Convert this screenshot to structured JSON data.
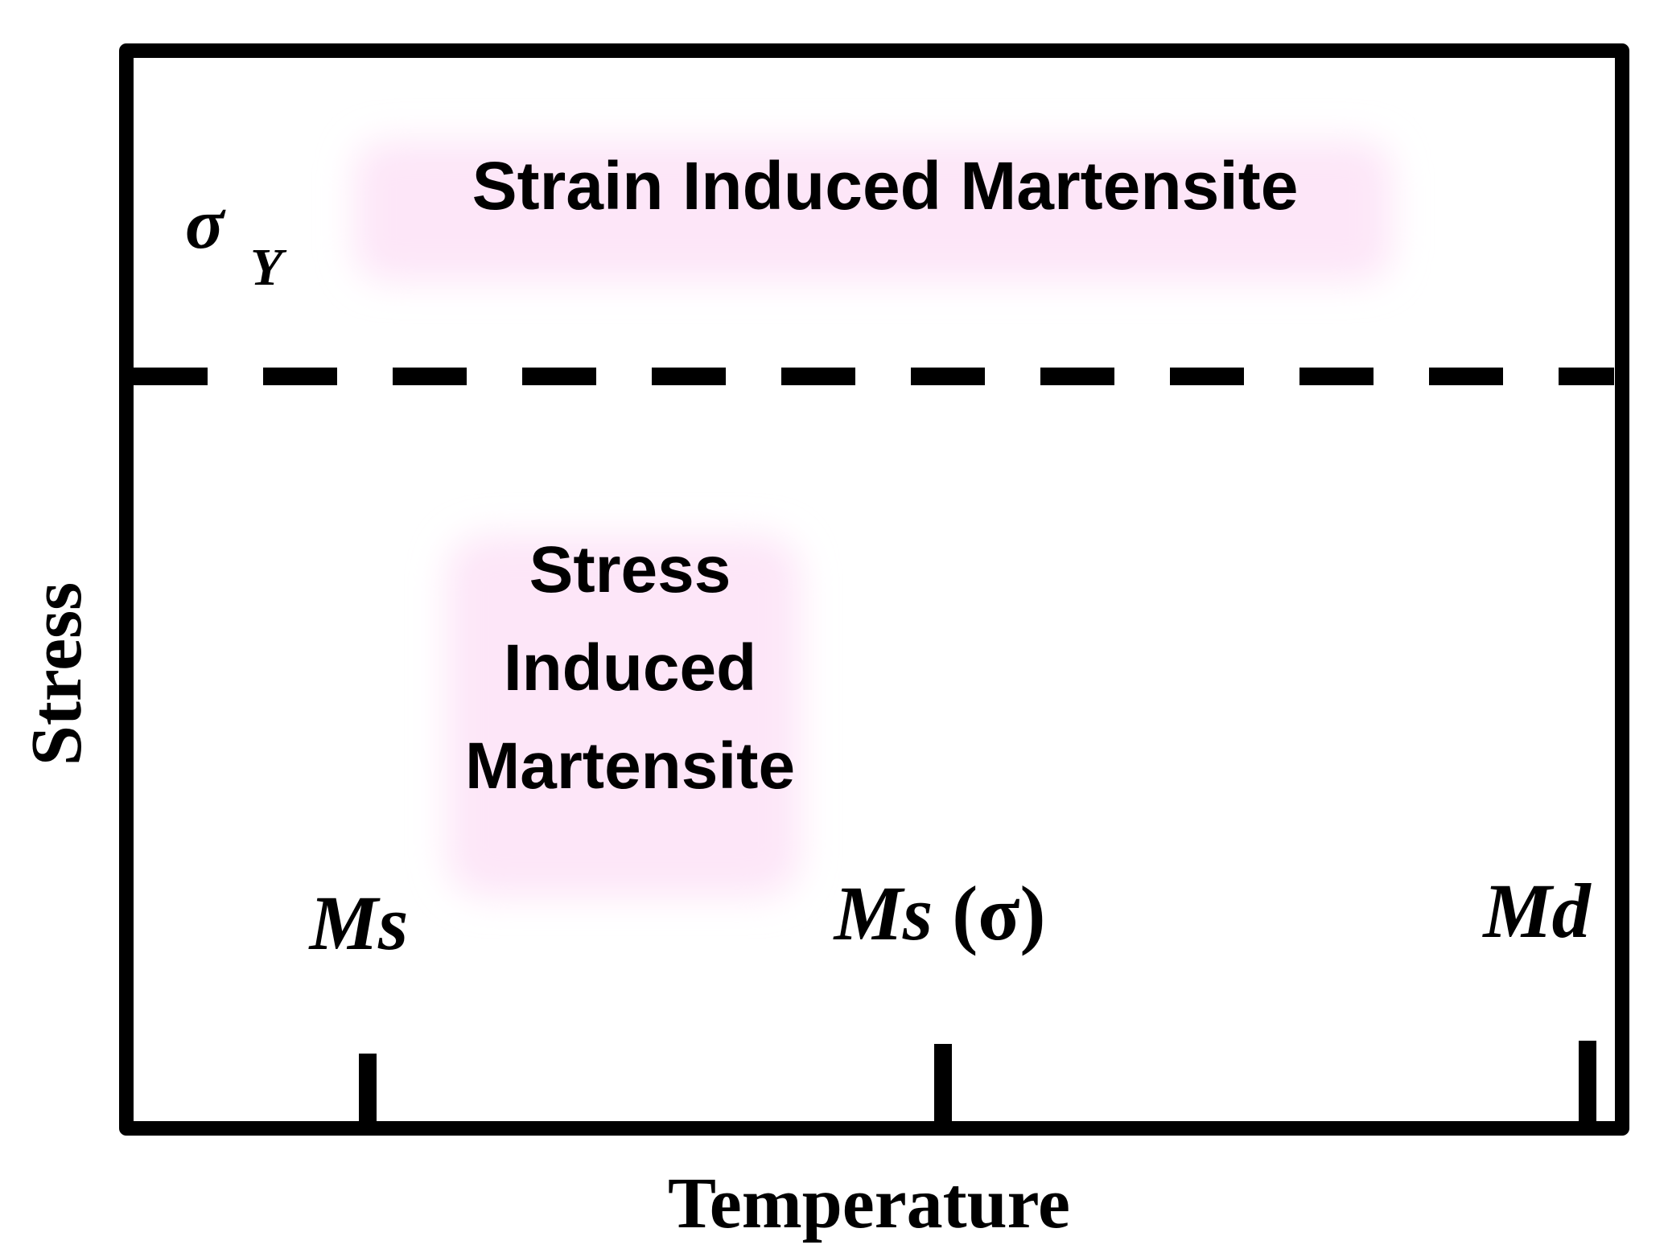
{
  "regions": {
    "upper": {
      "label": "Strain Induced Martensite"
    },
    "lower": {
      "label_lines": [
        "Stress",
        "Induced",
        "Martensite"
      ]
    },
    "highlight_color": "#fde6f8"
  },
  "yield_stress": {
    "symbol": "σ",
    "subscript": "Y"
  },
  "axes": {
    "xlabel": "Temperature",
    "ylabel": "Stress"
  },
  "temperature_markers": [
    {
      "main": "Ms",
      "suffix": ""
    },
    {
      "main": "Ms",
      "suffix": " (σ)"
    },
    {
      "main": "Md",
      "suffix": ""
    }
  ],
  "colors": {
    "line": "#000000",
    "background": "#ffffff"
  }
}
